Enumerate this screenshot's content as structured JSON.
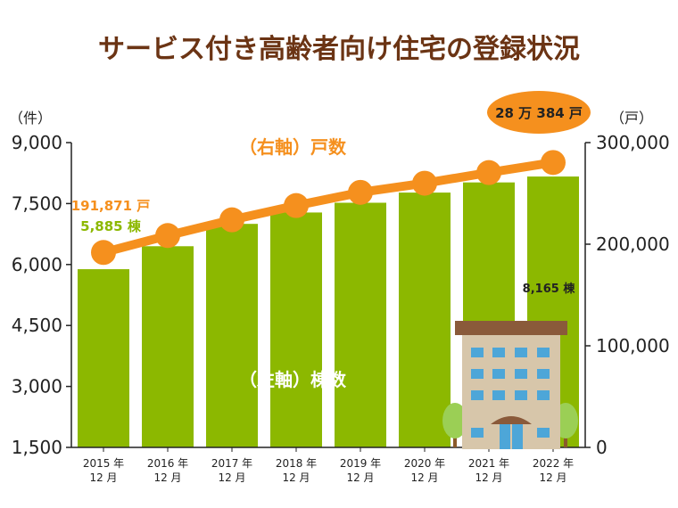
{
  "chart_data": {
    "type": "bar",
    "title": "サービス付き高齢者向け住宅の登録状況",
    "categories": [
      "2015年12月",
      "2016年12月",
      "2017年12月",
      "2018年12月",
      "2019年12月",
      "2020年12月",
      "2021年12月",
      "2022年12月"
    ],
    "category_labels": [
      [
        "2015 年",
        "12 月"
      ],
      [
        "2016 年",
        "12 月"
      ],
      [
        "2017 年",
        "12 月"
      ],
      [
        "2018 年",
        "12 月"
      ],
      [
        "2019 年",
        "12 月"
      ],
      [
        "2020 年",
        "12 月"
      ],
      [
        "2021 年",
        "12 月"
      ],
      [
        "2022 年",
        "12 月"
      ]
    ],
    "left_axis": {
      "unit": "（件）",
      "ylim": [
        1500,
        9000
      ],
      "ticks": [
        1500,
        3000,
        4500,
        6000,
        7500,
        9000
      ],
      "tick_labels": [
        "1,500",
        "3,000",
        "4,500",
        "6,000",
        "7,500",
        "9,000"
      ]
    },
    "right_axis": {
      "unit": "（戸）",
      "ylim": [
        0,
        300000
      ],
      "ticks": [
        0,
        100000,
        200000,
        300000
      ],
      "tick_labels": [
        "0",
        "100,000",
        "200,000",
        "300,000"
      ]
    },
    "series": [
      {
        "name": "（左軸）棟数",
        "type": "bar",
        "axis": "left",
        "color": "#8cb800",
        "values": [
          5885,
          6450,
          7000,
          7280,
          7520,
          7770,
          8020,
          8165
        ]
      },
      {
        "name": "（右軸）戸数",
        "type": "line",
        "axis": "right",
        "color": "#f5901e",
        "values": [
          191871,
          208500,
          224000,
          238000,
          251000,
          260000,
          270500,
          280384
        ]
      }
    ],
    "annotations": {
      "first_units": "191,871 戸",
      "first_buildings": "5,885 棟",
      "last_buildings": "8,165 棟",
      "last_units": "28 万 384 戸"
    },
    "grid": false,
    "legend": "inline"
  },
  "colors": {
    "title": "#6b3414",
    "bar": "#8cb800",
    "line": "#f5901e",
    "callout_bg": "#f5901e",
    "axis": "#222222"
  },
  "decoration": "building-illustration"
}
